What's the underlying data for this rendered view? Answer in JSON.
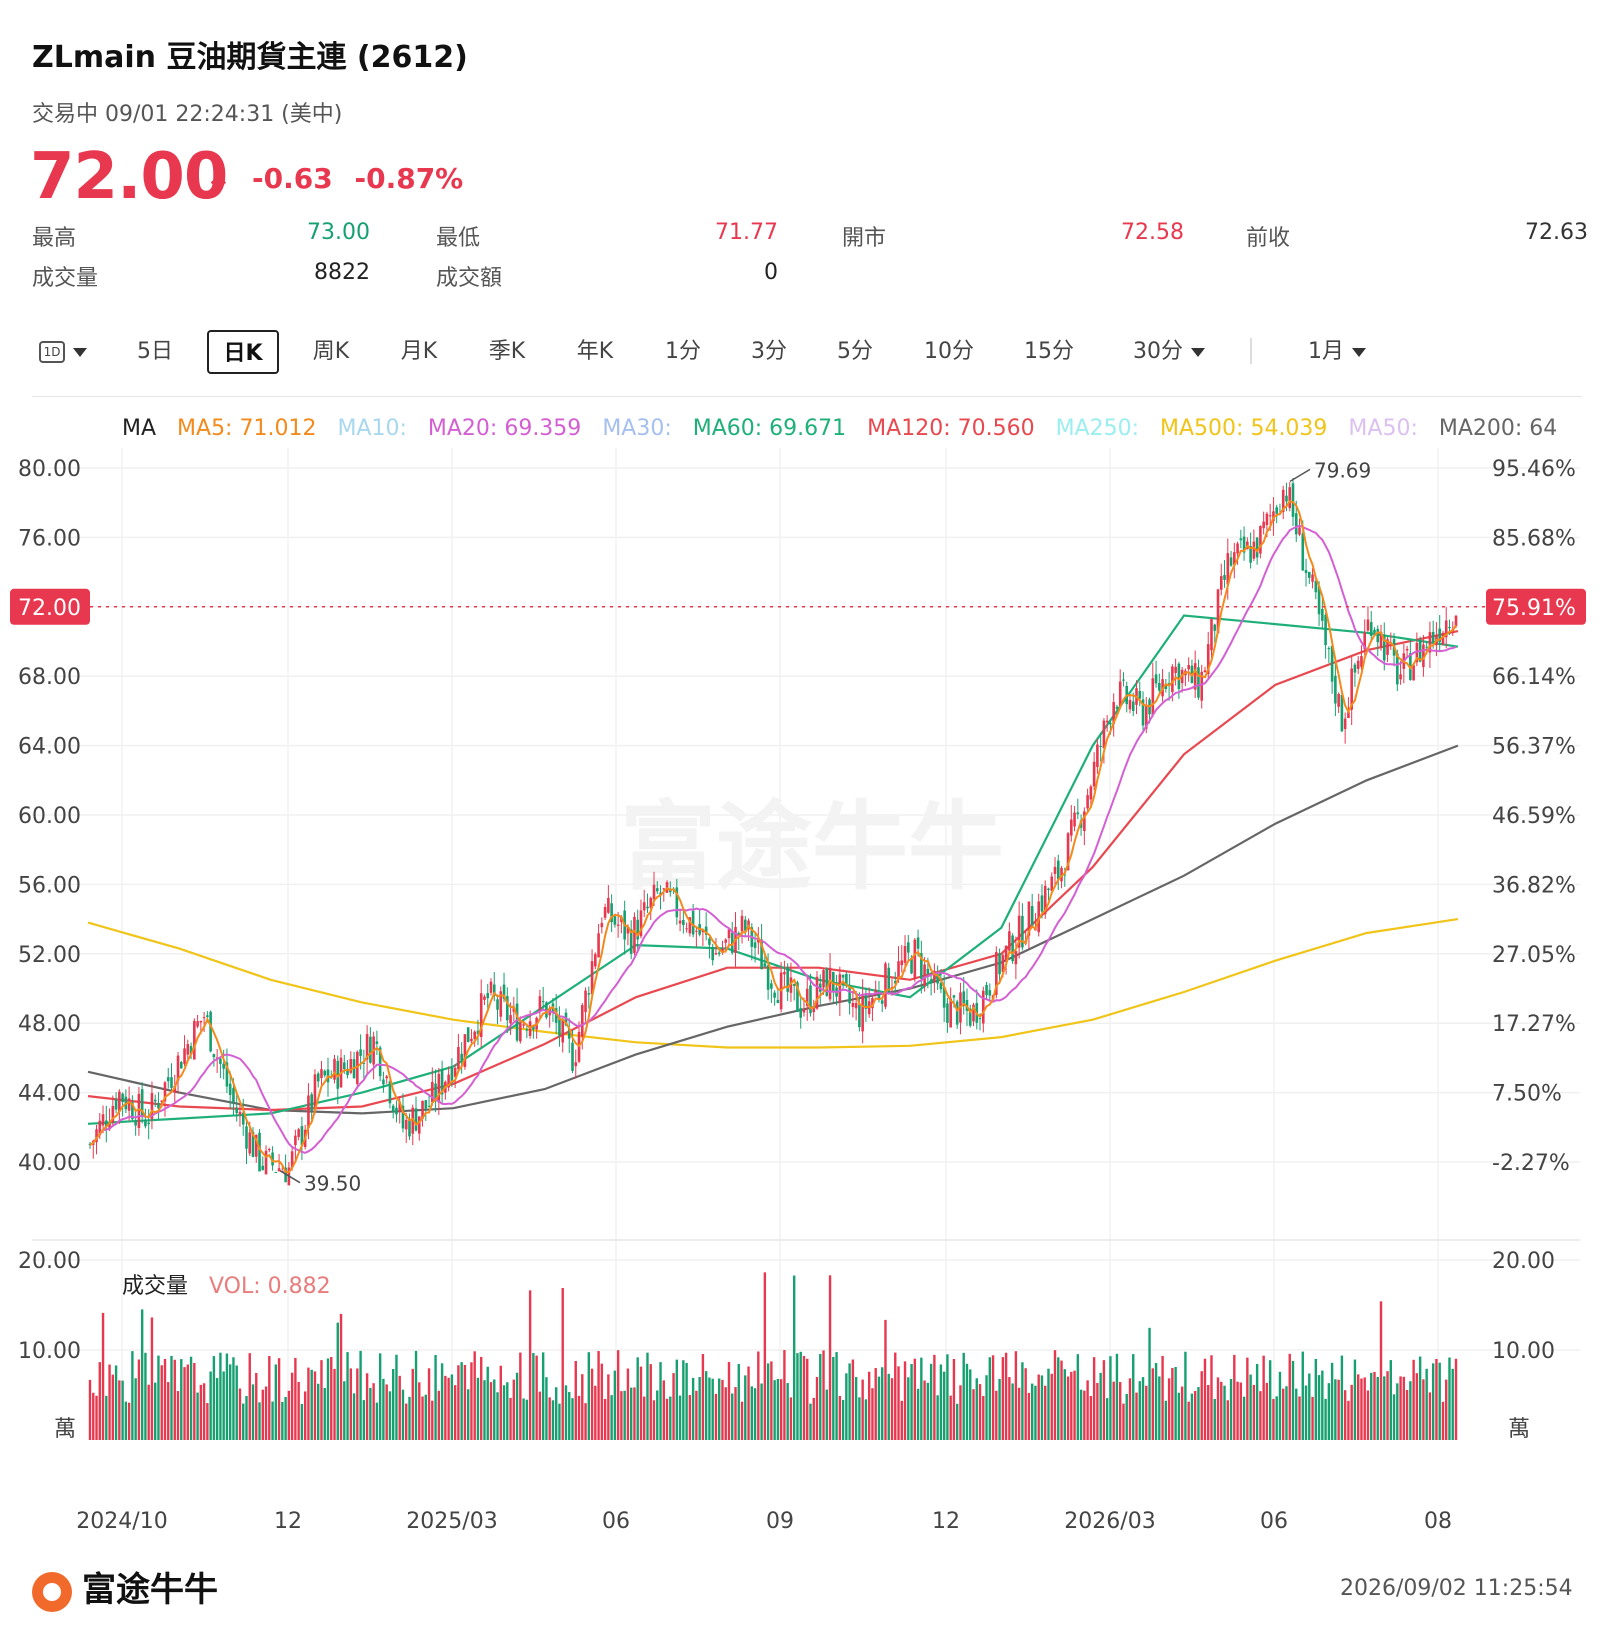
{
  "header": {
    "title": "ZLmain  豆油期貨主連 (2612)",
    "status": "交易中 09/01 22:24:31 (美中)",
    "price": "72.00",
    "change": "-0.63",
    "change_pct": "-0.87%"
  },
  "stats": [
    {
      "label": "最高",
      "value": "73.00",
      "color": "#16a070"
    },
    {
      "label": "最低",
      "value": "71.77",
      "color": "#e8384f"
    },
    {
      "label": "開市",
      "value": "72.58",
      "color": "#e8384f"
    },
    {
      "label": "前收",
      "value": "72.63",
      "color": "#333333"
    },
    {
      "label": "成交量",
      "value": "8822",
      "color": "#222222"
    },
    {
      "label": "成交額",
      "value": "0",
      "color": "#222222"
    }
  ],
  "tabs": [
    {
      "label": "1D"
    },
    {
      "label": "5日"
    },
    {
      "label": "日K",
      "active": true
    },
    {
      "label": "周K"
    },
    {
      "label": "月K"
    },
    {
      "label": "季K"
    },
    {
      "label": "年K"
    },
    {
      "label": "1分"
    },
    {
      "label": "3分"
    },
    {
      "label": "5分"
    },
    {
      "label": "10分"
    },
    {
      "label": "15分"
    },
    {
      "label": "30分"
    },
    {
      "label": "1月"
    }
  ],
  "ma_legend": [
    {
      "text": "MA",
      "color": "#222222"
    },
    {
      "text": "MA5: 71.012",
      "color": "#f28a1c"
    },
    {
      "text": "MA10:",
      "color": "#a8d8ef"
    },
    {
      "text": "MA20: 69.359",
      "color": "#d45fd3"
    },
    {
      "text": "MA30:",
      "color": "#a5c0ef"
    },
    {
      "text": "MA60: 69.671",
      "color": "#1fb07a"
    },
    {
      "text": "MA120: 70.560",
      "color": "#e8484f"
    },
    {
      "text": "MA250:",
      "color": "#9aeef0"
    },
    {
      "text": "MA500: 54.039",
      "color": "#f0c419"
    },
    {
      "text": "MA50:",
      "color": "#dcc0f0"
    },
    {
      "text": "MA200: 64",
      "color": "#666666"
    }
  ],
  "volume_legend": {
    "title": "成交量",
    "vol": "VOL: 0.882",
    "vol_color": "#e87c7c"
  },
  "footer": {
    "brand": "富途牛牛",
    "timestamp": "2026/09/02 11:25:54"
  },
  "chart_data": {
    "type": "candlestick",
    "y_axis_left": [
      "80.00",
      "76.00",
      "72.00",
      "68.00",
      "64.00",
      "60.00",
      "56.00",
      "52.00",
      "48.00",
      "44.00",
      "40.00"
    ],
    "y_axis_right": [
      "95.46%",
      "85.68%",
      "75.91%",
      "66.14%",
      "56.37%",
      "46.59%",
      "36.82%",
      "27.05%",
      "17.27%",
      "7.50%",
      "-2.27%"
    ],
    "ylim": [
      40,
      80
    ],
    "current_price": 72.0,
    "current_price_label": "72.00",
    "current_pct_label": "75.91%",
    "high_label": "79.69",
    "low_label": "39.50",
    "high": 79.69,
    "low": 39.5,
    "x_ticks": [
      "2024/10",
      "12",
      "2025/03",
      "06",
      "09",
      "12",
      "2026/03",
      "06",
      "08"
    ],
    "price_path": [
      {
        "t": "2024/09",
        "v": 41.0
      },
      {
        "t": "2024/10",
        "v": 44.0
      },
      {
        "t": "2024/10b",
        "v": 42.5
      },
      {
        "t": "2024/11",
        "v": 45.5
      },
      {
        "t": "2024/11b",
        "v": 48.5
      },
      {
        "t": "2024/11c",
        "v": 43.5
      },
      {
        "t": "2024/12",
        "v": 40.0
      },
      {
        "t": "2024/12b",
        "v": 39.6
      },
      {
        "t": "2025/01",
        "v": 44.5
      },
      {
        "t": "2025/01b",
        "v": 45.5
      },
      {
        "t": "2025/02",
        "v": 47.0
      },
      {
        "t": "2025/02b",
        "v": 42.0
      },
      {
        "t": "2025/03",
        "v": 43.5
      },
      {
        "t": "2025/03b",
        "v": 46.5
      },
      {
        "t": "2025/04",
        "v": 49.5
      },
      {
        "t": "2025/04b",
        "v": 48.0
      },
      {
        "t": "2025/05",
        "v": 49.0
      },
      {
        "t": "2025/05b",
        "v": 46.0
      },
      {
        "t": "2025/06",
        "v": 54.5
      },
      {
        "t": "2025/06b",
        "v": 53.0
      },
      {
        "t": "2025/07",
        "v": 55.5
      },
      {
        "t": "2025/07b",
        "v": 54.0
      },
      {
        "t": "2025/08",
        "v": 52.0
      },
      {
        "t": "2025/08b",
        "v": 53.5
      },
      {
        "t": "2025/09",
        "v": 50.5
      },
      {
        "t": "2025/09b",
        "v": 49.0
      },
      {
        "t": "2025/10",
        "v": 50.5
      },
      {
        "t": "2025/10b",
        "v": 48.5
      },
      {
        "t": "2025/11",
        "v": 50.5
      },
      {
        "t": "2025/11b",
        "v": 52.0
      },
      {
        "t": "2025/12",
        "v": 49.0
      },
      {
        "t": "2025/12b",
        "v": 48.5
      },
      {
        "t": "2026/01",
        "v": 51.5
      },
      {
        "t": "2026/01b",
        "v": 54.0
      },
      {
        "t": "2026/02",
        "v": 56.5
      },
      {
        "t": "2026/02b",
        "v": 61.0
      },
      {
        "t": "2026/03",
        "v": 67.0
      },
      {
        "t": "2026/03b",
        "v": 66.0
      },
      {
        "t": "2026/04",
        "v": 68.5
      },
      {
        "t": "2026/04b",
        "v": 67.5
      },
      {
        "t": "2026/05",
        "v": 74.5
      },
      {
        "t": "2026/05b",
        "v": 75.5
      },
      {
        "t": "2026/06",
        "v": 79.0
      },
      {
        "t": "2026/06b",
        "v": 72.5
      },
      {
        "t": "2026/07",
        "v": 65.5
      },
      {
        "t": "2026/07b",
        "v": 71.5
      },
      {
        "t": "2026/08",
        "v": 68.0
      },
      {
        "t": "2026/08b",
        "v": 70.0
      },
      {
        "t": "2026/09",
        "v": 72.0
      }
    ],
    "series": [
      {
        "name": "MA500",
        "color": "#f0c419",
        "values": [
          53.8,
          52.3,
          50.5,
          49.2,
          48.2,
          47.5,
          46.9,
          46.6,
          46.6,
          46.7,
          47.2,
          48.2,
          49.8,
          51.6,
          53.2,
          54.0
        ]
      },
      {
        "name": "MA200",
        "color": "#666666",
        "values": [
          45.2,
          44.0,
          43.0,
          42.8,
          43.1,
          44.2,
          46.2,
          47.8,
          49.0,
          50.0,
          51.5,
          54.0,
          56.5,
          59.5,
          62.0,
          64.0
        ]
      },
      {
        "name": "MA120",
        "color": "#e8484f",
        "values": [
          43.8,
          43.2,
          43.0,
          43.2,
          44.5,
          46.8,
          49.5,
          51.2,
          51.2,
          50.5,
          52.0,
          57.0,
          63.5,
          67.5,
          69.5,
          70.6
        ]
      },
      {
        "name": "MA60",
        "color": "#1fb07a",
        "values": [
          42.2,
          42.5,
          42.8,
          44.0,
          45.5,
          49.0,
          52.5,
          52.3,
          50.5,
          49.5,
          53.5,
          64.0,
          71.5,
          71.0,
          70.5,
          69.7
        ]
      }
    ],
    "volume": {
      "unit": "萬",
      "y_axis": [
        "20.00",
        "10.00"
      ],
      "ylim": [
        0,
        20
      ],
      "max_spike": 19.3,
      "typical_range": [
        4,
        10
      ]
    }
  }
}
